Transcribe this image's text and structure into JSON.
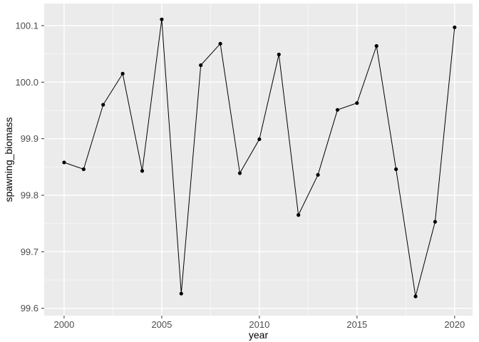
{
  "chart_data": {
    "type": "line",
    "title": "",
    "xlabel": "year",
    "ylabel": "spawning_biomass",
    "x": [
      2000,
      2001,
      2002,
      2003,
      2004,
      2005,
      2006,
      2007,
      2008,
      2009,
      2010,
      2011,
      2012,
      2013,
      2014,
      2015,
      2016,
      2017,
      2018,
      2019,
      2020
    ],
    "series": [
      {
        "name": "spawning_biomass",
        "values": [
          99.858,
          99.846,
          99.96,
          100.015,
          99.843,
          100.111,
          99.626,
          100.03,
          100.068,
          99.839,
          99.899,
          100.049,
          99.765,
          99.836,
          99.951,
          99.963,
          100.064,
          99.846,
          99.621,
          99.753,
          100.097
        ]
      }
    ],
    "xlim": [
      1998.98,
      2020.92
    ],
    "ylim": [
      99.587,
      100.139
    ],
    "x_ticks": [
      2000,
      2005,
      2010,
      2015,
      2020
    ],
    "x_tick_labels": [
      "2000",
      "2005",
      "2010",
      "2015",
      "2020"
    ],
    "y_ticks": [
      99.6,
      99.7,
      99.8,
      99.9,
      100.0,
      100.1
    ],
    "y_tick_labels": [
      "99.6",
      "99.7",
      "99.8",
      "99.9",
      "100.0",
      "100.1"
    ],
    "x_minor_ticks": [
      2002.5,
      2007.5,
      2012.5,
      2017.5
    ],
    "y_minor_ticks": [
      99.65,
      99.75,
      99.85,
      99.95,
      100.05
    ],
    "grid": true,
    "legend_position": "none",
    "marker": "point",
    "colors": {
      "panel_background": "#EBEBEB",
      "grid_major": "#FFFFFF",
      "grid_minor": "#FFFFFF",
      "line": "#000000",
      "point": "#000000",
      "tick_label": "#4D4D4D",
      "tick_mark": "#333333",
      "axis_title": "#000000",
      "outer_background": "#FFFFFF"
    }
  }
}
